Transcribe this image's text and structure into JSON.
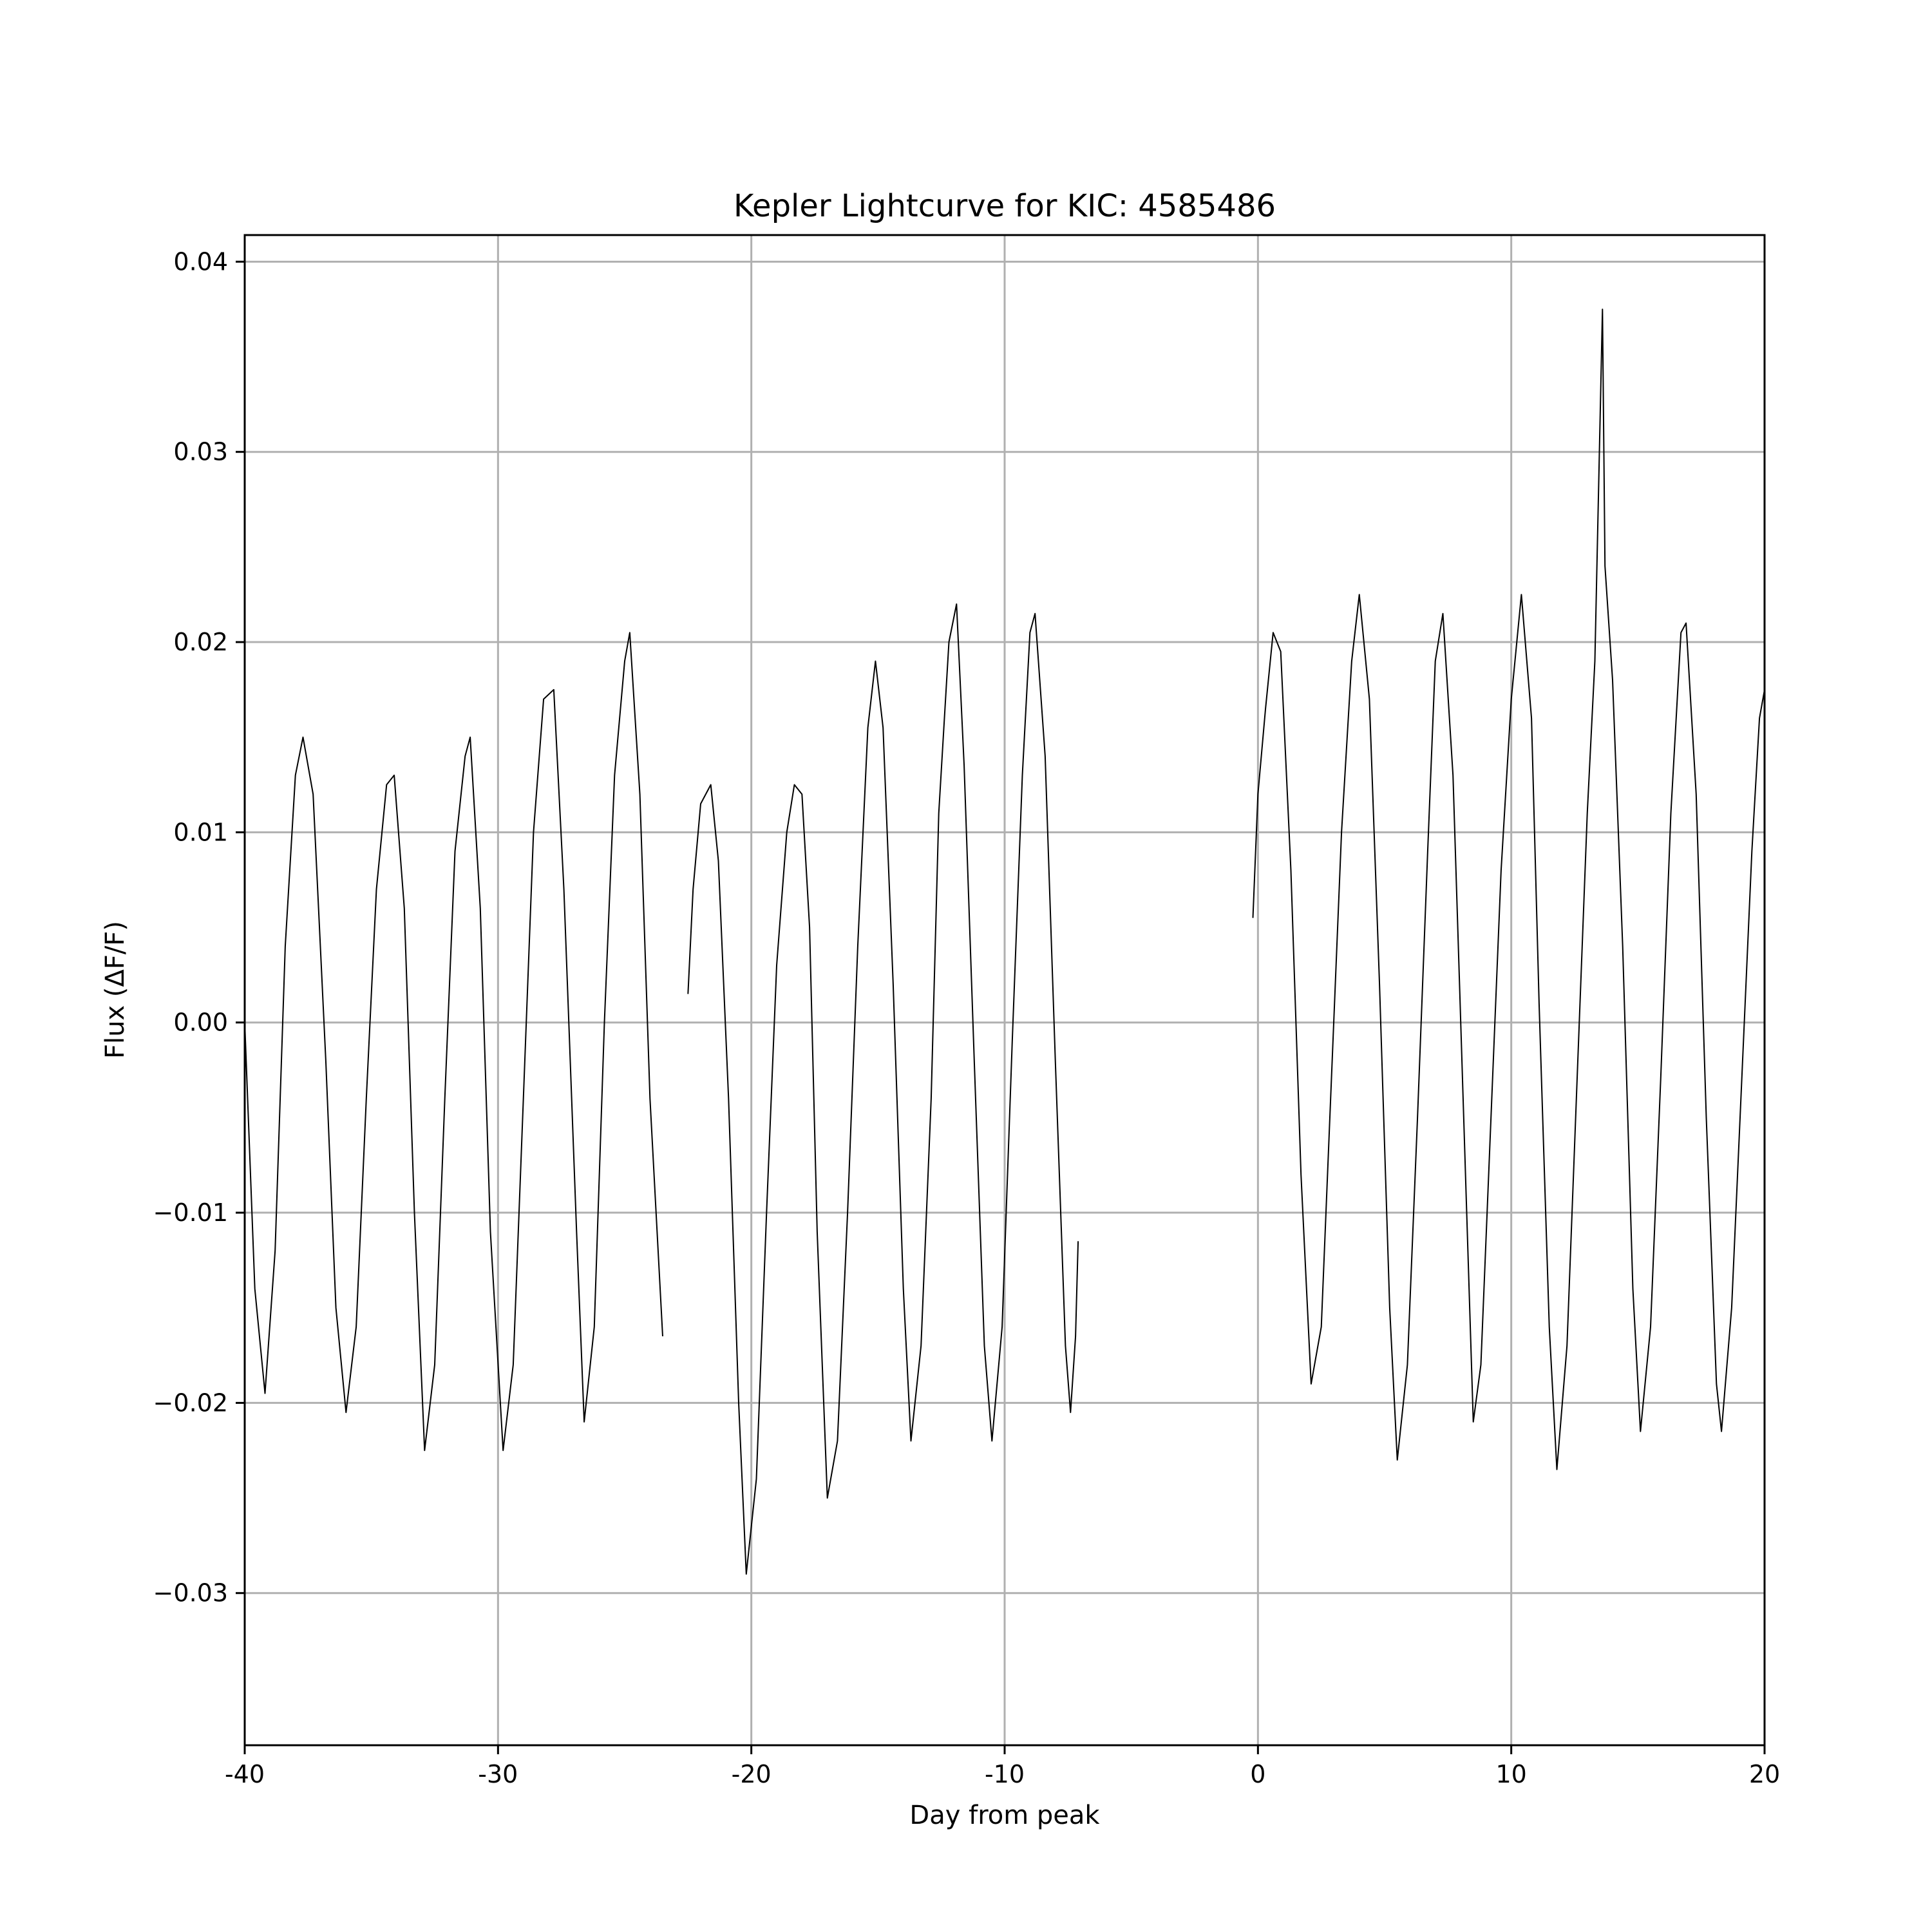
{
  "chart_data": {
    "type": "line",
    "title": "Kepler Lightcurve for KIC: 4585486",
    "xlabel": "Day from peak",
    "ylabel": "Flux (ΔF/F)",
    "xlim": [
      -40,
      20
    ],
    "ylim": [
      -0.038,
      0.0414
    ],
    "grid": true,
    "line_color": "#000000",
    "grid_color": "#b0b0b0",
    "x_ticks": [
      {
        "value": -40,
        "label": "-40"
      },
      {
        "value": -30,
        "label": "-30"
      },
      {
        "value": -20,
        "label": "-20"
      },
      {
        "value": -10,
        "label": "-10"
      },
      {
        "value": 0,
        "label": "0"
      },
      {
        "value": 10,
        "label": "10"
      },
      {
        "value": 20,
        "label": "20"
      }
    ],
    "y_ticks": [
      {
        "value": 0.04,
        "label": "0.04"
      },
      {
        "value": 0.03,
        "label": "0.03"
      },
      {
        "value": 0.02,
        "label": "0.02"
      },
      {
        "value": 0.01,
        "label": "0.01"
      },
      {
        "value": 0.0,
        "label": "0.00"
      },
      {
        "value": -0.01,
        "label": "−0.01"
      },
      {
        "value": -0.02,
        "label": "−0.02"
      },
      {
        "value": -0.03,
        "label": "−0.03"
      }
    ],
    "series": [
      {
        "segments": [
          [
            [
              -40.0,
              0.0
            ],
            [
              -39.6,
              -0.014
            ],
            [
              -39.2,
              -0.0195
            ],
            [
              -38.8,
              -0.012
            ],
            [
              -38.4,
              0.004
            ],
            [
              -38.0,
              0.013
            ],
            [
              -37.7,
              0.015
            ],
            [
              -37.3,
              0.012
            ],
            [
              -36.8,
              -0.002
            ],
            [
              -36.4,
              -0.015
            ],
            [
              -36.0,
              -0.0205
            ],
            [
              -35.6,
              -0.016
            ],
            [
              -35.2,
              -0.004
            ],
            [
              -34.8,
              0.007
            ],
            [
              -34.4,
              0.0125
            ],
            [
              -34.1,
              0.013
            ],
            [
              -33.7,
              0.006
            ],
            [
              -33.3,
              -0.01
            ],
            [
              -32.9,
              -0.0225
            ],
            [
              -32.5,
              -0.018
            ],
            [
              -32.1,
              -0.004
            ],
            [
              -31.7,
              0.009
            ],
            [
              -31.3,
              0.014
            ],
            [
              -31.1,
              0.015
            ],
            [
              -30.7,
              0.006
            ],
            [
              -30.3,
              -0.011
            ],
            [
              -29.8,
              -0.0225
            ],
            [
              -29.4,
              -0.018
            ],
            [
              -29.0,
              -0.004
            ],
            [
              -28.6,
              0.01
            ],
            [
              -28.2,
              0.017
            ],
            [
              -27.8,
              0.0175
            ],
            [
              -27.4,
              0.007
            ],
            [
              -26.9,
              -0.011
            ],
            [
              -26.6,
              -0.021
            ],
            [
              -26.2,
              -0.016
            ],
            [
              -25.8,
              0.0
            ],
            [
              -25.4,
              0.013
            ],
            [
              -25.0,
              0.019
            ],
            [
              -24.8,
              0.0205
            ],
            [
              -24.4,
              0.012
            ],
            [
              -24.0,
              -0.004
            ],
            [
              -23.5,
              -0.0165
            ]
          ],
          [
            [
              -22.5,
              0.0015
            ],
            [
              -22.3,
              0.007
            ],
            [
              -22.0,
              0.0115
            ],
            [
              -21.6,
              0.0125
            ],
            [
              -21.3,
              0.0085
            ],
            [
              -20.9,
              -0.004
            ],
            [
              -20.5,
              -0.02
            ],
            [
              -20.2,
              -0.029
            ],
            [
              -19.8,
              -0.024
            ],
            [
              -19.4,
              -0.01
            ],
            [
              -19.0,
              0.003
            ],
            [
              -18.6,
              0.01
            ],
            [
              -18.3,
              0.0125
            ],
            [
              -18.0,
              0.012
            ],
            [
              -17.7,
              0.005
            ],
            [
              -17.4,
              -0.011
            ],
            [
              -17.0,
              -0.025
            ],
            [
              -16.6,
              -0.022
            ],
            [
              -16.2,
              -0.01
            ],
            [
              -15.8,
              0.004
            ],
            [
              -15.4,
              0.0155
            ],
            [
              -15.1,
              0.019
            ],
            [
              -14.8,
              0.0155
            ],
            [
              -14.4,
              0.002
            ],
            [
              -14.0,
              -0.014
            ],
            [
              -13.7,
              -0.022
            ],
            [
              -13.3,
              -0.017
            ],
            [
              -12.9,
              -0.004
            ],
            [
              -12.6,
              0.011
            ],
            [
              -12.2,
              0.02
            ],
            [
              -11.9,
              0.022
            ],
            [
              -11.6,
              0.0135
            ],
            [
              -11.2,
              -0.002
            ],
            [
              -10.8,
              -0.017
            ],
            [
              -10.5,
              -0.022
            ],
            [
              -10.1,
              -0.016
            ],
            [
              -9.7,
              -0.001
            ],
            [
              -9.3,
              0.013
            ],
            [
              -9.0,
              0.0205
            ],
            [
              -8.8,
              0.0215
            ],
            [
              -8.4,
              0.014
            ],
            [
              -8.0,
              -0.002
            ],
            [
              -7.6,
              -0.017
            ],
            [
              -7.4,
              -0.0205
            ],
            [
              -7.2,
              -0.0165
            ],
            [
              -7.1,
              -0.0115
            ]
          ]
        ]
      },
      {
        "segments": [
          [
            [
              -0.2,
              0.0055
            ],
            [
              0.0,
              0.012
            ],
            [
              0.3,
              0.0165
            ],
            [
              0.6,
              0.0205
            ],
            [
              0.9,
              0.0195
            ],
            [
              1.3,
              0.008
            ],
            [
              1.7,
              -0.008
            ],
            [
              2.1,
              -0.019
            ],
            [
              2.5,
              -0.016
            ],
            [
              2.9,
              -0.003
            ],
            [
              3.3,
              0.01
            ],
            [
              3.7,
              0.019
            ],
            [
              4.0,
              0.0225
            ],
            [
              4.4,
              0.017
            ],
            [
              4.8,
              0.002
            ],
            [
              5.2,
              -0.015
            ],
            [
              5.5,
              -0.023
            ],
            [
              5.9,
              -0.018
            ],
            [
              6.3,
              -0.005
            ],
            [
              6.7,
              0.009
            ],
            [
              7.0,
              0.019
            ],
            [
              7.3,
              0.0215
            ],
            [
              7.7,
              0.013
            ],
            [
              8.1,
              -0.004
            ],
            [
              8.5,
              -0.021
            ],
            [
              8.8,
              -0.018
            ],
            [
              9.2,
              -0.005
            ],
            [
              9.6,
              0.008
            ],
            [
              10.0,
              0.017
            ],
            [
              10.4,
              0.0225
            ],
            [
              10.8,
              0.016
            ],
            [
              11.1,
              0.001
            ],
            [
              11.5,
              -0.016
            ],
            [
              11.8,
              -0.0235
            ],
            [
              12.2,
              -0.017
            ],
            [
              12.6,
              -0.003
            ],
            [
              13.0,
              0.011
            ],
            [
              13.3,
              0.019
            ],
            [
              13.6,
              0.0375
            ],
            [
              13.7,
              0.024
            ],
            [
              14.0,
              0.018
            ],
            [
              14.4,
              0.004
            ],
            [
              14.8,
              -0.014
            ],
            [
              15.1,
              -0.0215
            ],
            [
              15.5,
              -0.016
            ],
            [
              15.9,
              -0.003
            ],
            [
              16.3,
              0.011
            ],
            [
              16.7,
              0.0205
            ],
            [
              16.9,
              0.021
            ],
            [
              17.3,
              0.012
            ],
            [
              17.7,
              -0.005
            ],
            [
              18.1,
              -0.019
            ],
            [
              18.3,
              -0.0215
            ],
            [
              18.7,
              -0.015
            ],
            [
              19.1,
              -0.003
            ],
            [
              19.5,
              0.009
            ],
            [
              19.8,
              0.016
            ],
            [
              20.0,
              0.0175
            ]
          ]
        ]
      }
    ]
  }
}
